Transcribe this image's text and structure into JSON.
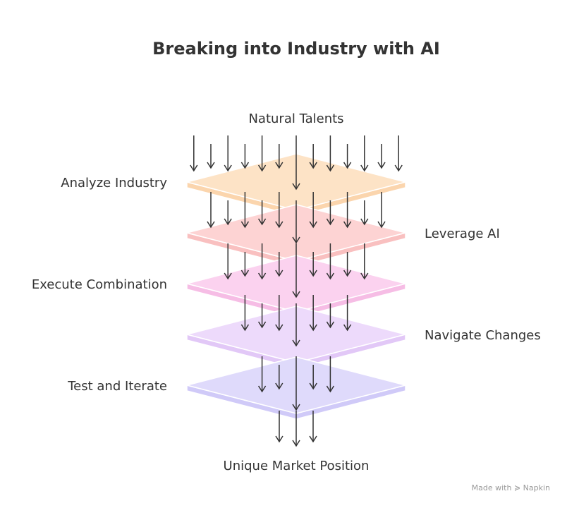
{
  "title": "Breaking into Industry with AI",
  "top_label": "Natural Talents",
  "layers": [
    {
      "label": "Analyze Industry"
    },
    {
      "label": "Leverage AI"
    },
    {
      "label": "Execute Combination"
    },
    {
      "label": "Navigate Changes"
    },
    {
      "label": "Test and Iterate"
    }
  ],
  "bottom_label": "Unique Market Position",
  "watermark": "Made with ≽ Napkin"
}
